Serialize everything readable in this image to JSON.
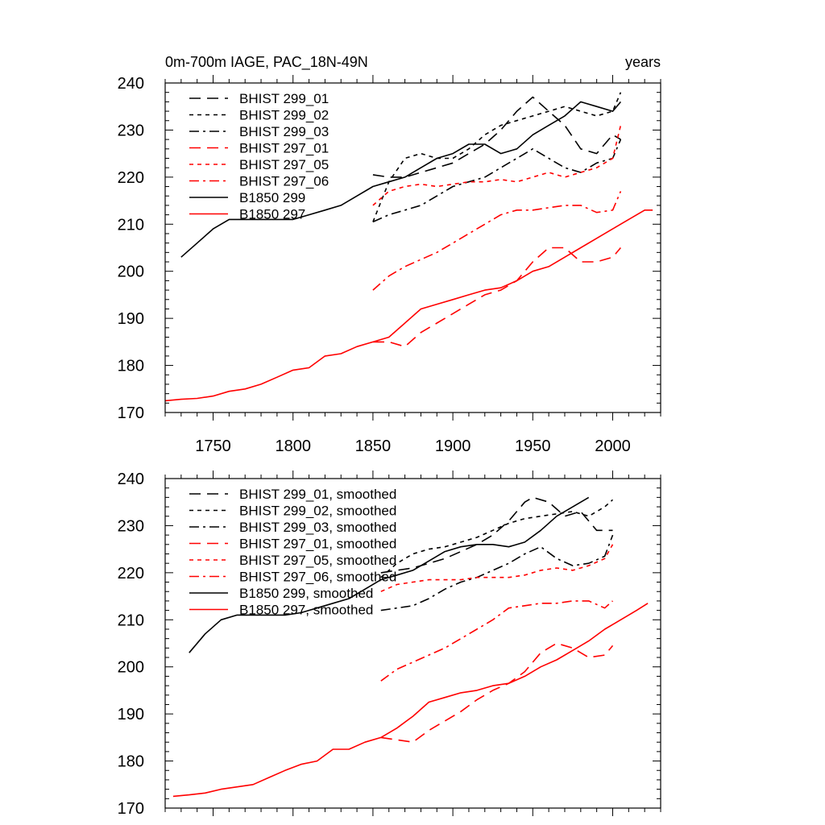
{
  "chart_data": [
    {
      "type": "line",
      "title": "0m-700m IAGE, PAC_18N-49N",
      "title_right": "years",
      "xlabel": "",
      "ylabel": "",
      "xlim": [
        1720,
        2030
      ],
      "ylim": [
        170,
        240
      ],
      "xticks": [
        1750,
        1800,
        1850,
        1900,
        1950,
        2000
      ],
      "xtick_labels": [
        "1750",
        "1800",
        "1850",
        "1900",
        "1950",
        "2000"
      ],
      "show_xtick_labels": true,
      "yticks": [
        170,
        180,
        190,
        200,
        210,
        220,
        230,
        240
      ],
      "ytick_labels": [
        "170",
        "180",
        "190",
        "200",
        "210",
        "220",
        "230",
        "240"
      ],
      "grid": false,
      "legend_position": "top-left",
      "series": [
        {
          "name": "BHIST 299_01",
          "color": "#000000",
          "dash": "long-dash",
          "x": [
            1850,
            1860,
            1870,
            1880,
            1890,
            1900,
            1910,
            1920,
            1930,
            1940,
            1950,
            1960,
            1970,
            1980,
            1990,
            2000,
            2005
          ],
          "y": [
            220.5,
            220,
            220,
            221,
            222,
            223,
            225,
            227,
            230,
            234,
            237,
            234,
            231,
            226,
            225,
            229,
            228
          ]
        },
        {
          "name": "BHIST 299_02",
          "color": "#000000",
          "dash": "short-dash",
          "x": [
            1850,
            1860,
            1870,
            1880,
            1890,
            1900,
            1910,
            1920,
            1930,
            1940,
            1950,
            1960,
            1970,
            1980,
            1990,
            2000,
            2005
          ],
          "y": [
            210.5,
            219,
            224,
            225,
            224,
            224,
            226,
            229,
            231,
            232,
            233,
            234,
            235,
            234,
            233,
            234,
            238
          ]
        },
        {
          "name": "BHIST 299_03",
          "color": "#000000",
          "dash": "dash-dot",
          "x": [
            1850,
            1860,
            1870,
            1880,
            1890,
            1900,
            1910,
            1920,
            1930,
            1940,
            1950,
            1960,
            1970,
            1980,
            1990,
            2000,
            2005
          ],
          "y": [
            210.5,
            212,
            213,
            214,
            216,
            218,
            219,
            220,
            222,
            224,
            226,
            224,
            222,
            221,
            223,
            224,
            228
          ]
        },
        {
          "name": "BHIST 297_01",
          "color": "#ff0000",
          "dash": "long-dash",
          "x": [
            1850,
            1860,
            1870,
            1880,
            1890,
            1900,
            1910,
            1920,
            1930,
            1940,
            1950,
            1960,
            1970,
            1980,
            1990,
            2000,
            2005
          ],
          "y": [
            185,
            185,
            184,
            187,
            189,
            191,
            193,
            195,
            196,
            198,
            202,
            205,
            205,
            202,
            202,
            203,
            205
          ]
        },
        {
          "name": "BHIST 297_05",
          "color": "#ff0000",
          "dash": "short-dash",
          "x": [
            1850,
            1860,
            1870,
            1880,
            1890,
            1900,
            1910,
            1920,
            1930,
            1940,
            1950,
            1960,
            1970,
            1980,
            1990,
            2000,
            2005
          ],
          "y": [
            214,
            217,
            218,
            218.5,
            218,
            218.5,
            219,
            219,
            219.5,
            219,
            220,
            221,
            220,
            221,
            222,
            224,
            231
          ]
        },
        {
          "name": "BHIST 297_06",
          "color": "#ff0000",
          "dash": "dash-dot",
          "x": [
            1850,
            1860,
            1870,
            1880,
            1890,
            1900,
            1910,
            1920,
            1930,
            1940,
            1950,
            1960,
            1970,
            1980,
            1990,
            2000,
            2005
          ],
          "y": [
            196,
            199,
            201,
            202.5,
            204,
            206,
            208,
            210,
            212,
            213,
            213,
            213.5,
            214,
            214,
            212.5,
            213,
            217
          ]
        },
        {
          "name": "B1850 299",
          "color": "#000000",
          "dash": "solid",
          "x": [
            1730,
            1740,
            1750,
            1760,
            1770,
            1780,
            1790,
            1800,
            1810,
            1820,
            1830,
            1840,
            1850,
            1860,
            1870,
            1880,
            1890,
            1900,
            1910,
            1920,
            1930,
            1940,
            1950,
            1960,
            1970,
            1980,
            1990,
            2000,
            2005
          ],
          "y": [
            203,
            206,
            209,
            211,
            211,
            211,
            211,
            211,
            212,
            213,
            214,
            216,
            218,
            219,
            220,
            222,
            224,
            225,
            227,
            227,
            225,
            226,
            229,
            231,
            233,
            236,
            235,
            234,
            236
          ]
        },
        {
          "name": "B1850 297",
          "color": "#ff0000",
          "dash": "solid",
          "x": [
            1720,
            1730,
            1740,
            1750,
            1760,
            1770,
            1780,
            1790,
            1800,
            1810,
            1820,
            1830,
            1840,
            1850,
            1860,
            1870,
            1880,
            1890,
            1900,
            1910,
            1920,
            1930,
            1940,
            1950,
            1960,
            1970,
            1980,
            1990,
            2000,
            2010,
            2020,
            2025
          ],
          "y": [
            172.5,
            172.8,
            173,
            173.5,
            174.5,
            175,
            176,
            177.5,
            179,
            179.5,
            182,
            182.5,
            184,
            185,
            186,
            189,
            192,
            193,
            194,
            195,
            196,
            196.5,
            198,
            200,
            201,
            203,
            205,
            207,
            209,
            211,
            213,
            213
          ]
        }
      ]
    },
    {
      "type": "line",
      "title": "",
      "title_right": "",
      "xlabel": "",
      "ylabel": "",
      "xlim": [
        1720,
        2030
      ],
      "ylim": [
        170,
        240
      ],
      "xticks": [
        1750,
        1800,
        1850,
        1900,
        1950,
        2000
      ],
      "xtick_labels": [],
      "show_xtick_labels": false,
      "yticks": [
        170,
        180,
        190,
        200,
        210,
        220,
        230,
        240
      ],
      "ytick_labels": [
        "170",
        "180",
        "190",
        "200",
        "210",
        "220",
        "230",
        "240"
      ],
      "grid": false,
      "legend_position": "top-left",
      "series": [
        {
          "name": "BHIST 299_01, smoothed",
          "color": "#000000",
          "dash": "long-dash",
          "x": [
            1855,
            1865,
            1875,
            1885,
            1895,
            1905,
            1915,
            1925,
            1935,
            1945,
            1950,
            1960,
            1970,
            1980,
            1990,
            2000
          ],
          "y": [
            220,
            220.5,
            221,
            222,
            223,
            224.5,
            226,
            228,
            231,
            235,
            236,
            235,
            232,
            233,
            229,
            229
          ]
        },
        {
          "name": "BHIST 299_02, smoothed",
          "color": "#000000",
          "dash": "short-dash",
          "x": [
            1855,
            1865,
            1875,
            1885,
            1895,
            1905,
            1915,
            1925,
            1935,
            1945,
            1955,
            1965,
            1975,
            1985,
            1995,
            2000
          ],
          "y": [
            219,
            222,
            224,
            225,
            225.5,
            226.5,
            227.5,
            229,
            230.5,
            231.5,
            232,
            232.5,
            233,
            232,
            234,
            235.5
          ]
        },
        {
          "name": "BHIST 299_03, smoothed",
          "color": "#000000",
          "dash": "dash-dot",
          "x": [
            1855,
            1865,
            1875,
            1885,
            1895,
            1905,
            1915,
            1925,
            1935,
            1945,
            1955,
            1965,
            1975,
            1985,
            1995,
            2000
          ],
          "y": [
            212,
            212.5,
            213,
            214.5,
            216.5,
            218,
            219,
            220.5,
            222,
            224,
            225.5,
            223,
            221.5,
            222,
            223.5,
            228
          ]
        },
        {
          "name": "BHIST 297_01, smoothed",
          "color": "#ff0000",
          "dash": "long-dash",
          "x": [
            1855,
            1865,
            1875,
            1885,
            1895,
            1905,
            1915,
            1925,
            1935,
            1945,
            1955,
            1965,
            1975,
            1985,
            1995,
            2000
          ],
          "y": [
            185,
            184.5,
            184,
            186.5,
            188.5,
            190.5,
            193,
            195,
            196.5,
            199,
            203,
            205,
            204,
            202,
            202.5,
            204.5
          ]
        },
        {
          "name": "BHIST 297_05, smoothed",
          "color": "#ff0000",
          "dash": "short-dash",
          "x": [
            1855,
            1865,
            1875,
            1885,
            1895,
            1905,
            1915,
            1925,
            1935,
            1945,
            1955,
            1965,
            1975,
            1985,
            1995,
            2000
          ],
          "y": [
            216,
            217.5,
            218,
            218.5,
            218.5,
            218.5,
            219,
            219,
            219,
            219.5,
            220.5,
            221,
            220.5,
            221.5,
            223,
            226
          ]
        },
        {
          "name": "BHIST 297_06, smoothed",
          "color": "#ff0000",
          "dash": "dash-dot",
          "x": [
            1855,
            1865,
            1875,
            1885,
            1895,
            1905,
            1915,
            1925,
            1935,
            1945,
            1955,
            1965,
            1975,
            1985,
            1995,
            2000
          ],
          "y": [
            197,
            199.5,
            201,
            202.5,
            204,
            206,
            208,
            210,
            212.5,
            213,
            213.5,
            213.5,
            214,
            214,
            212.5,
            214
          ]
        },
        {
          "name": "B1850 299, smoothed",
          "color": "#000000",
          "dash": "solid",
          "x": [
            1735,
            1745,
            1755,
            1765,
            1775,
            1785,
            1795,
            1805,
            1815,
            1825,
            1835,
            1845,
            1855,
            1865,
            1875,
            1885,
            1895,
            1905,
            1915,
            1925,
            1935,
            1945,
            1955,
            1965,
            1975,
            1985
          ],
          "y": [
            203,
            207,
            210,
            211,
            211,
            211,
            211,
            211.5,
            212.5,
            213.5,
            214.5,
            216.5,
            218.5,
            219.5,
            220.5,
            222.5,
            224.5,
            225.5,
            226,
            226,
            225.5,
            226.5,
            229,
            232,
            234,
            236
          ]
        },
        {
          "name": "B1850 297, smoothed",
          "color": "#ff0000",
          "dash": "solid",
          "x": [
            1725,
            1735,
            1745,
            1755,
            1765,
            1775,
            1785,
            1795,
            1805,
            1815,
            1825,
            1835,
            1845,
            1855,
            1865,
            1875,
            1885,
            1895,
            1905,
            1915,
            1925,
            1935,
            1945,
            1955,
            1965,
            1975,
            1985,
            1995,
            2005,
            2015,
            2022
          ],
          "y": [
            172.5,
            172.8,
            173.2,
            174,
            174.5,
            175,
            176.5,
            178,
            179.3,
            180,
            182.5,
            182.5,
            184,
            185,
            187,
            189.5,
            192.5,
            193.5,
            194.5,
            195,
            196,
            196.5,
            198,
            200,
            201.5,
            203.5,
            205.5,
            208,
            210,
            212,
            213.5
          ]
        }
      ]
    }
  ]
}
